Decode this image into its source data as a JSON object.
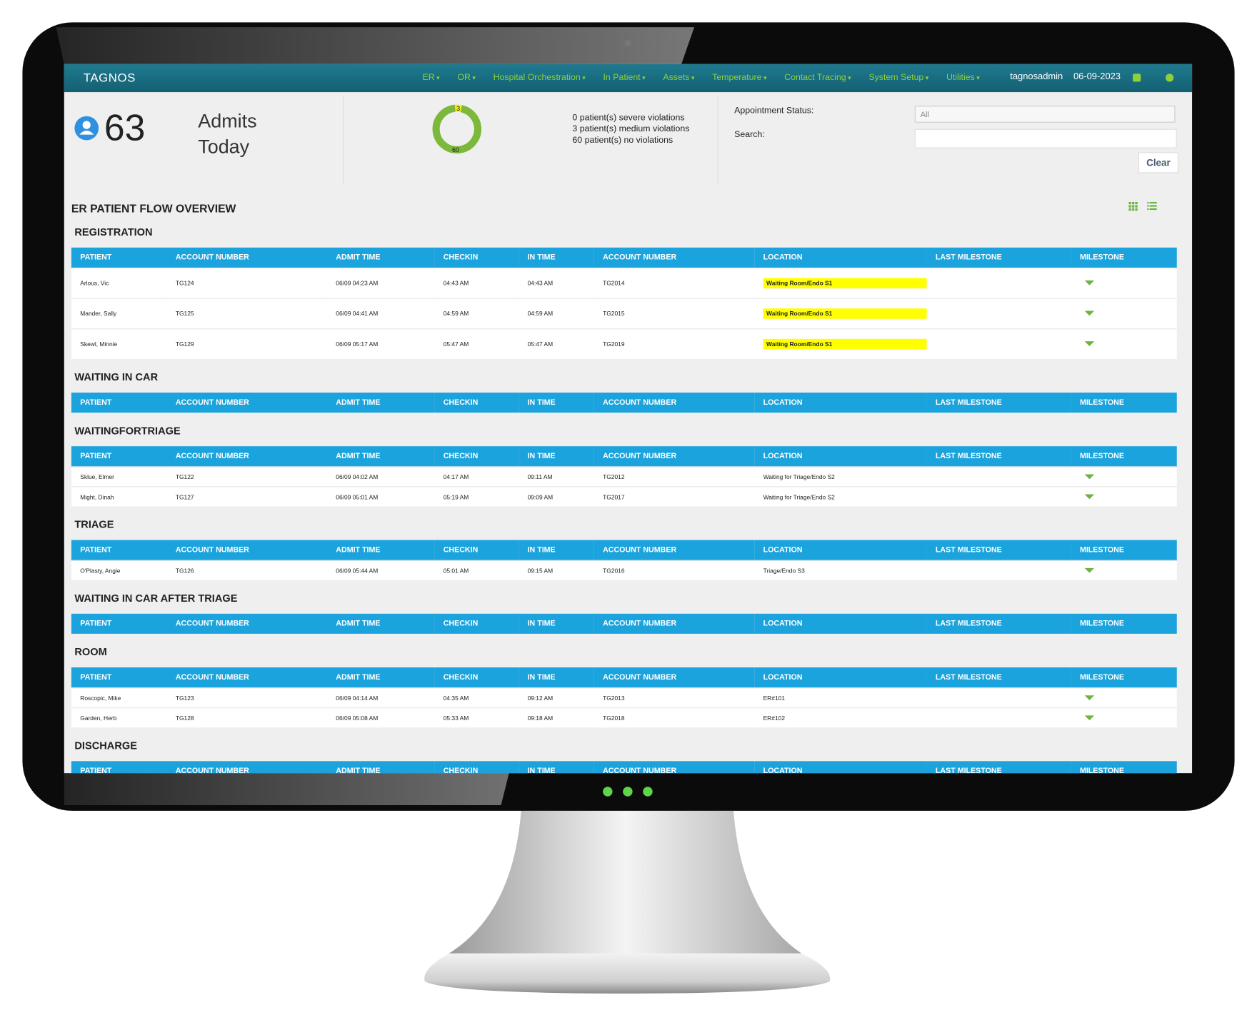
{
  "nav": {
    "brand": "TAGNOS",
    "menu": [
      "ER",
      "OR",
      "Hospital Orchestration",
      "In Patient",
      "Assets",
      "Temperature",
      "Contact Tracing",
      "System Setup",
      "Utilities"
    ],
    "user": "tagnosadmin",
    "date": "06-09-2023"
  },
  "summary": {
    "count": 63,
    "label": "Admits Today",
    "donut": {
      "values": [
        3,
        60
      ],
      "colors": [
        "#f2ec1c",
        "#7cb83a"
      ]
    },
    "violations": [
      "0 patient(s) severe violations",
      "3 patient(s) medium violations",
      "60 patient(s) no violations"
    ]
  },
  "filters": {
    "status_label": "Appointment Status:",
    "status_value": "All",
    "search_label": "Search:",
    "clear": "Clear"
  },
  "overview_title": "ER PATIENT FLOW OVERVIEW",
  "columns": [
    "PATIENT",
    "ACCOUNT NUMBER",
    "ADMIT TIME",
    "CHECKIN",
    "IN TIME",
    "ACCOUNT NUMBER",
    "LOCATION",
    "LAST MILESTONE",
    "MILESTONE"
  ],
  "sections": [
    {
      "name": "REGISTRATION",
      "highlight": true,
      "rows": [
        [
          "Arlous, Vic",
          "TG124",
          "06/09 04:23 AM",
          "04:43 AM",
          "04:43 AM",
          "TG2014",
          "Waiting Room/Endo S1"
        ],
        [
          "Mander, Sally",
          "TG125",
          "06/09 04:41 AM",
          "04:59 AM",
          "04:59 AM",
          "TG2015",
          "Waiting Room/Endo S1"
        ],
        [
          "Skewl, Minnie",
          "TG129",
          "06/09 05:17 AM",
          "05:47 AM",
          "05:47 AM",
          "TG2019",
          "Waiting Room/Endo S1"
        ]
      ]
    },
    {
      "name": "WAITING IN CAR",
      "rows": []
    },
    {
      "name": "WAITINGFORTRIAGE",
      "rows": [
        [
          "Sklue, Elmer",
          "TG122",
          "06/09 04:02 AM",
          "04:17 AM",
          "09:11 AM",
          "TG2012",
          "Waiting for Triage/Endo S2"
        ],
        [
          "Might, Dinah",
          "TG127",
          "06/09 05:01 AM",
          "05:19 AM",
          "09:09 AM",
          "TG2017",
          "Waiting for Triage/Endo S2"
        ]
      ]
    },
    {
      "name": "TRIAGE",
      "rows": [
        [
          "O'Plasty, Angie",
          "TG126",
          "06/09 05:44 AM",
          "05:01 AM",
          "09:15 AM",
          "TG2016",
          "Triage/Endo S3"
        ]
      ]
    },
    {
      "name": "WAITING IN CAR AFTER TRIAGE",
      "rows": []
    },
    {
      "name": "ROOM",
      "rows": [
        [
          "Roscopic, Mike",
          "TG123",
          "06/09 04:14 AM",
          "04:35 AM",
          "09:12 AM",
          "TG2013",
          "ER#101"
        ],
        [
          "Garden, Herb",
          "TG128",
          "06/09 05:08 AM",
          "05:33 AM",
          "09:18 AM",
          "TG2018",
          "ER#102"
        ]
      ]
    },
    {
      "name": "DISCHARGE",
      "rows": []
    }
  ]
}
